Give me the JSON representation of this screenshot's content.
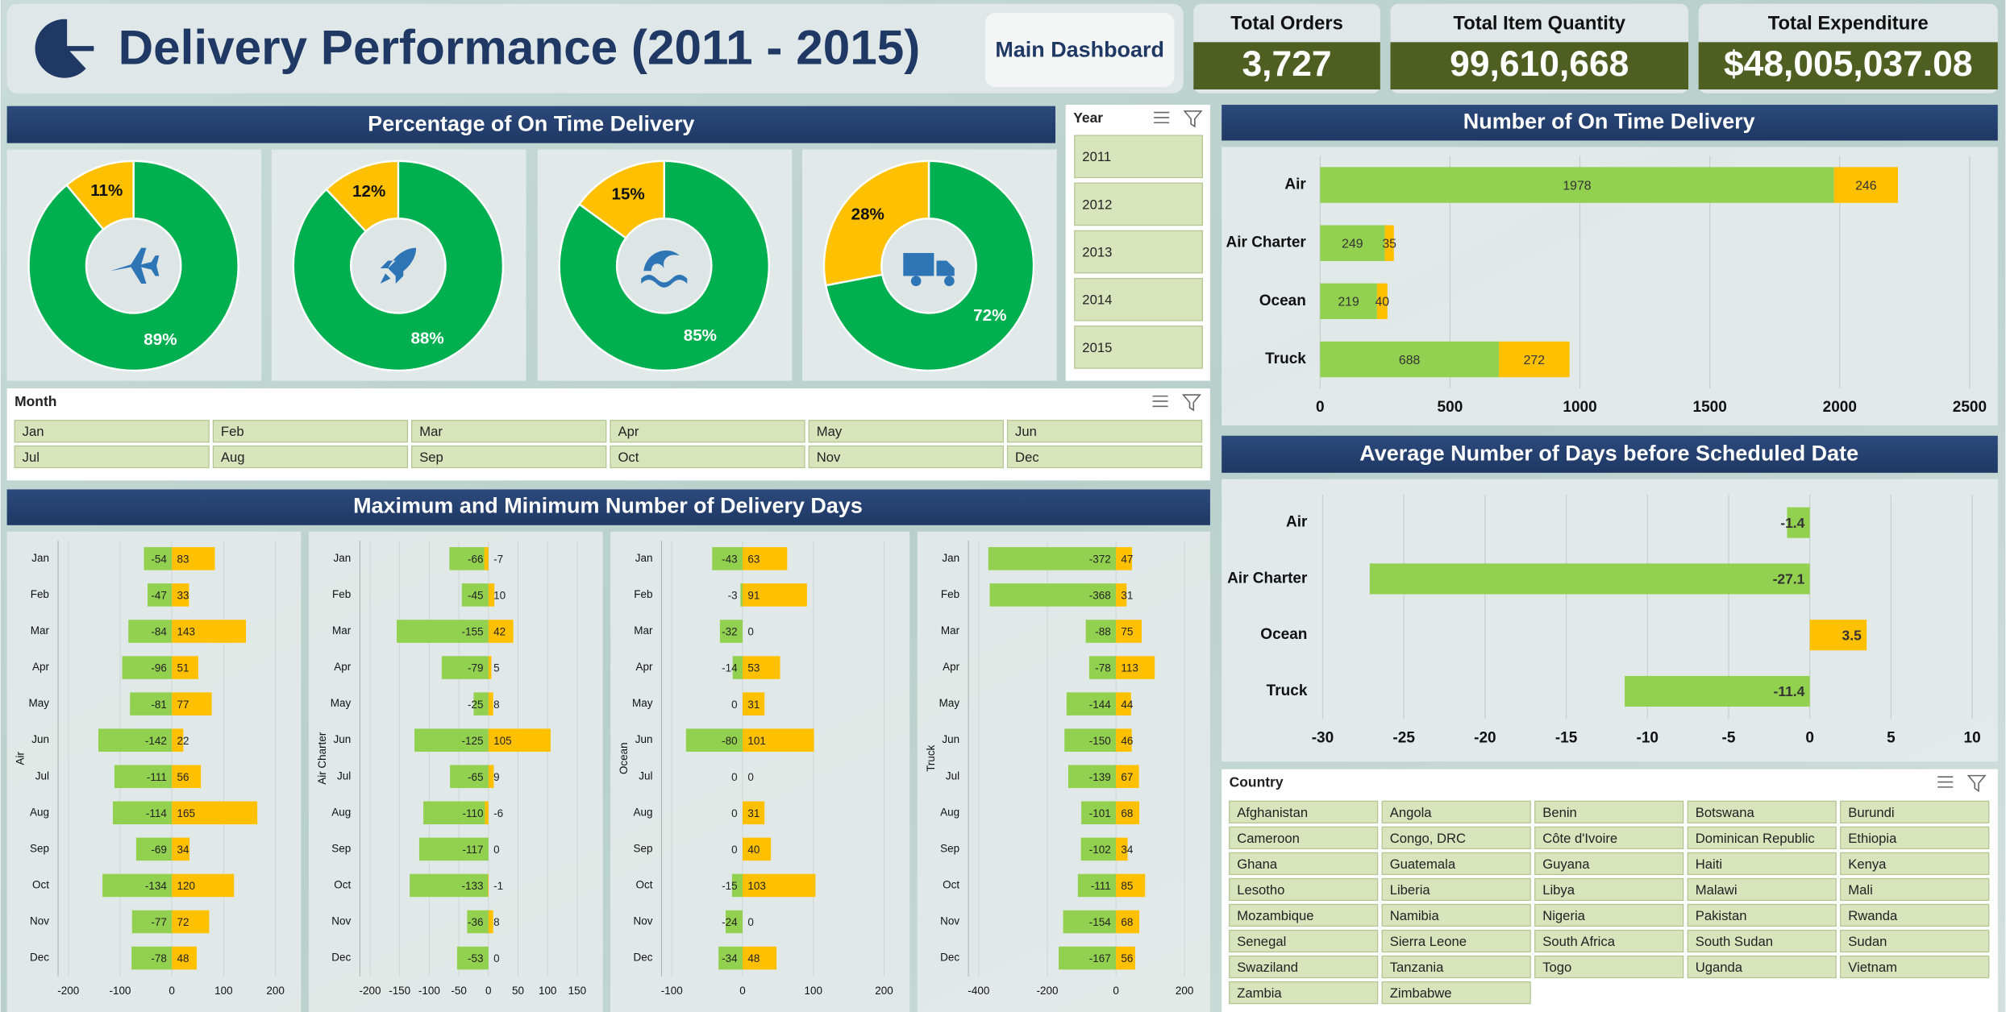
{
  "header": {
    "title": "Delivery Performance (2011 - 2015)",
    "button": "Main Dashboard"
  },
  "kpis": [
    {
      "label": "Total Orders",
      "value": "3,727"
    },
    {
      "label": "Total Item Quantity",
      "value": "99,610,668"
    },
    {
      "label": "Total Expenditure",
      "value": "$48,005,037.08"
    }
  ],
  "slicers": {
    "year": {
      "title": "Year",
      "items": [
        "2011",
        "2012",
        "2013",
        "2014",
        "2015"
      ]
    },
    "month": {
      "title": "Month",
      "items": [
        "Jan",
        "Feb",
        "Mar",
        "Apr",
        "May",
        "Jun",
        "Jul",
        "Aug",
        "Sep",
        "Oct",
        "Nov",
        "Dec"
      ]
    },
    "country": {
      "title": "Country",
      "items": [
        "Afghanistan",
        "Angola",
        "Benin",
        "Botswana",
        "Burundi",
        "Cameroon",
        "Congo, DRC",
        "Côte d'Ivoire",
        "Dominican Republic",
        "Ethiopia",
        "Ghana",
        "Guatemala",
        "Guyana",
        "Haiti",
        "Kenya",
        "Lesotho",
        "Liberia",
        "Libya",
        "Malawi",
        "Mali",
        "Mozambique",
        "Namibia",
        "Nigeria",
        "Pakistan",
        "Rwanda",
        "Senegal",
        "Sierra Leone",
        "South Africa",
        "South Sudan",
        "Sudan",
        "Swaziland",
        "Tanzania",
        "Togo",
        "Uganda",
        "Vietnam",
        "Zambia",
        "Zimbabwe"
      ]
    }
  },
  "chart_data": [
    {
      "type": "donut",
      "title": "Percentage of On Time Delivery",
      "colors": [
        "#00b050",
        "#ffc000"
      ],
      "series": [
        {
          "values": [
            89,
            11
          ],
          "value_labels": [
            "89%",
            "11%"
          ]
        },
        {
          "values": [
            88,
            12
          ],
          "value_labels": [
            "88%",
            "12%"
          ]
        },
        {
          "values": [
            85,
            15
          ],
          "value_labels": [
            "85%",
            "15%"
          ]
        },
        {
          "values": [
            72,
            28
          ],
          "value_labels": [
            "72%",
            "28%"
          ]
        }
      ]
    },
    {
      "type": "hbar-stacked",
      "title": "Number of On Time Delivery",
      "categories": [
        "Air",
        "Air Charter",
        "Ocean",
        "Truck"
      ],
      "series": [
        {
          "color": "#92d050",
          "values": [
            1978,
            249,
            219,
            688
          ]
        },
        {
          "color": "#ffc000",
          "values": [
            246,
            35,
            40,
            272
          ]
        }
      ],
      "xlim": [
        0,
        2500
      ],
      "xticks": [
        0,
        500,
        1000,
        1500,
        2000,
        2500
      ],
      "grid": true
    },
    {
      "type": "hbar",
      "title": "Average Number of Days before Scheduled Date",
      "categories": [
        "Air",
        "Air Charter",
        "Ocean",
        "Truck"
      ],
      "values": [
        -1.4,
        -27.1,
        3.5,
        -11.4
      ],
      "colors": [
        "#92d050",
        "#92d050",
        "#ffc000",
        "#92d050"
      ],
      "xlim": [
        -30,
        10
      ],
      "xticks": [
        -30,
        -25,
        -20,
        -15,
        -10,
        -5,
        0,
        5,
        10
      ],
      "grid": true
    },
    {
      "type": "diverging",
      "title": "Maximum and Minimum Number of Delivery Days",
      "grid": true,
      "panels": [
        {
          "ylabel": "Air",
          "categories": [
            "Jan",
            "Feb",
            "Mar",
            "Apr",
            "May",
            "Jun",
            "Jul",
            "Aug",
            "Sep",
            "Oct",
            "Nov",
            "Dec"
          ],
          "series": [
            {
              "color": "#92d050",
              "values": [
                -54,
                -47,
                -84,
                -96,
                -81,
                -142,
                -111,
                -114,
                -69,
                -134,
                -77,
                -78
              ]
            },
            {
              "color": "#ffc000",
              "values": [
                83,
                33,
                143,
                51,
                77,
                22,
                56,
                165,
                34,
                120,
                72,
                48
              ]
            }
          ],
          "xlim": [
            -200,
            200
          ],
          "xticks": [
            -200,
            -100,
            0,
            100,
            200
          ]
        },
        {
          "ylabel": "Air Charter",
          "categories": [
            "Jan",
            "Feb",
            "Mar",
            "Apr",
            "May",
            "Jun",
            "Jul",
            "Aug",
            "Sep",
            "Oct",
            "Nov",
            "Dec"
          ],
          "series": [
            {
              "color": "#92d050",
              "values": [
                -66,
                -45,
                -155,
                -79,
                -25,
                -125,
                -65,
                -110,
                -117,
                -133,
                -36,
                -53
              ]
            },
            {
              "color": "#ffc000",
              "values": [
                -7,
                10,
                42,
                5,
                8,
                105,
                9,
                -6,
                0,
                -1,
                8,
                0
              ]
            }
          ],
          "xlim": [
            -200,
            150
          ],
          "xticks": [
            -200,
            -150,
            -100,
            -50,
            0,
            50,
            100,
            150
          ]
        },
        {
          "ylabel": "Ocean",
          "categories": [
            "Jan",
            "Feb",
            "Mar",
            "Apr",
            "May",
            "Jun",
            "Jul",
            "Aug",
            "Sep",
            "Oct",
            "Nov",
            "Dec"
          ],
          "series": [
            {
              "color": "#92d050",
              "values": [
                -43,
                -3,
                -32,
                -14,
                0,
                -80,
                0,
                0,
                0,
                -15,
                -24,
                -34
              ]
            },
            {
              "color": "#ffc000",
              "values": [
                63,
                91,
                0,
                53,
                31,
                101,
                0,
                31,
                40,
                103,
                0,
                48
              ]
            }
          ],
          "xlim": [
            -100,
            200
          ],
          "xticks": [
            -100,
            0,
            100,
            200
          ]
        },
        {
          "ylabel": "Truck",
          "categories": [
            "Jan",
            "Feb",
            "Mar",
            "Apr",
            "May",
            "Jun",
            "Jul",
            "Aug",
            "Sep",
            "Oct",
            "Nov",
            "Dec"
          ],
          "series": [
            {
              "color": "#92d050",
              "values": [
                -372,
                -368,
                -88,
                -78,
                -144,
                -150,
                -139,
                -101,
                -102,
                -111,
                -154,
                -167
              ]
            },
            {
              "color": "#ffc000",
              "values": [
                47,
                31,
                75,
                113,
                44,
                46,
                67,
                68,
                34,
                85,
                68,
                56
              ]
            }
          ],
          "xlim": [
            -400,
            200
          ],
          "xticks": [
            -400,
            -200,
            0,
            200
          ]
        }
      ]
    }
  ]
}
